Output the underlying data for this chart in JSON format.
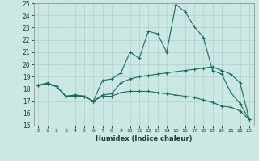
{
  "xlabel": "Humidex (Indice chaleur)",
  "xlim": [
    -0.5,
    23.5
  ],
  "ylim": [
    15,
    25
  ],
  "xticks": [
    0,
    1,
    2,
    3,
    4,
    5,
    6,
    7,
    8,
    9,
    10,
    11,
    12,
    13,
    14,
    15,
    16,
    17,
    18,
    19,
    20,
    21,
    22,
    23
  ],
  "yticks": [
    15,
    16,
    17,
    18,
    19,
    20,
    21,
    22,
    23,
    24,
    25
  ],
  "bg_color": "#cce8e4",
  "line_color": "#1a6b5e",
  "grid_color": "#b0d0cc",
  "series": [
    [
      18.3,
      18.5,
      18.2,
      17.4,
      17.5,
      17.4,
      17.0,
      18.7,
      18.8,
      19.3,
      21.0,
      20.5,
      22.7,
      22.5,
      21.0,
      24.9,
      24.3,
      23.1,
      22.2,
      19.5,
      19.2,
      17.7,
      16.8,
      15.5
    ],
    [
      18.3,
      18.4,
      18.2,
      17.4,
      17.5,
      17.4,
      17.0,
      17.5,
      17.6,
      18.5,
      18.8,
      19.0,
      19.1,
      19.2,
      19.3,
      19.4,
      19.5,
      19.6,
      19.7,
      19.8,
      19.5,
      19.2,
      18.5,
      15.5
    ],
    [
      18.3,
      18.4,
      18.2,
      17.4,
      17.4,
      17.4,
      17.0,
      17.4,
      17.4,
      17.7,
      17.8,
      17.8,
      17.8,
      17.7,
      17.6,
      17.5,
      17.4,
      17.3,
      17.1,
      16.9,
      16.6,
      16.5,
      16.2,
      15.5
    ]
  ]
}
